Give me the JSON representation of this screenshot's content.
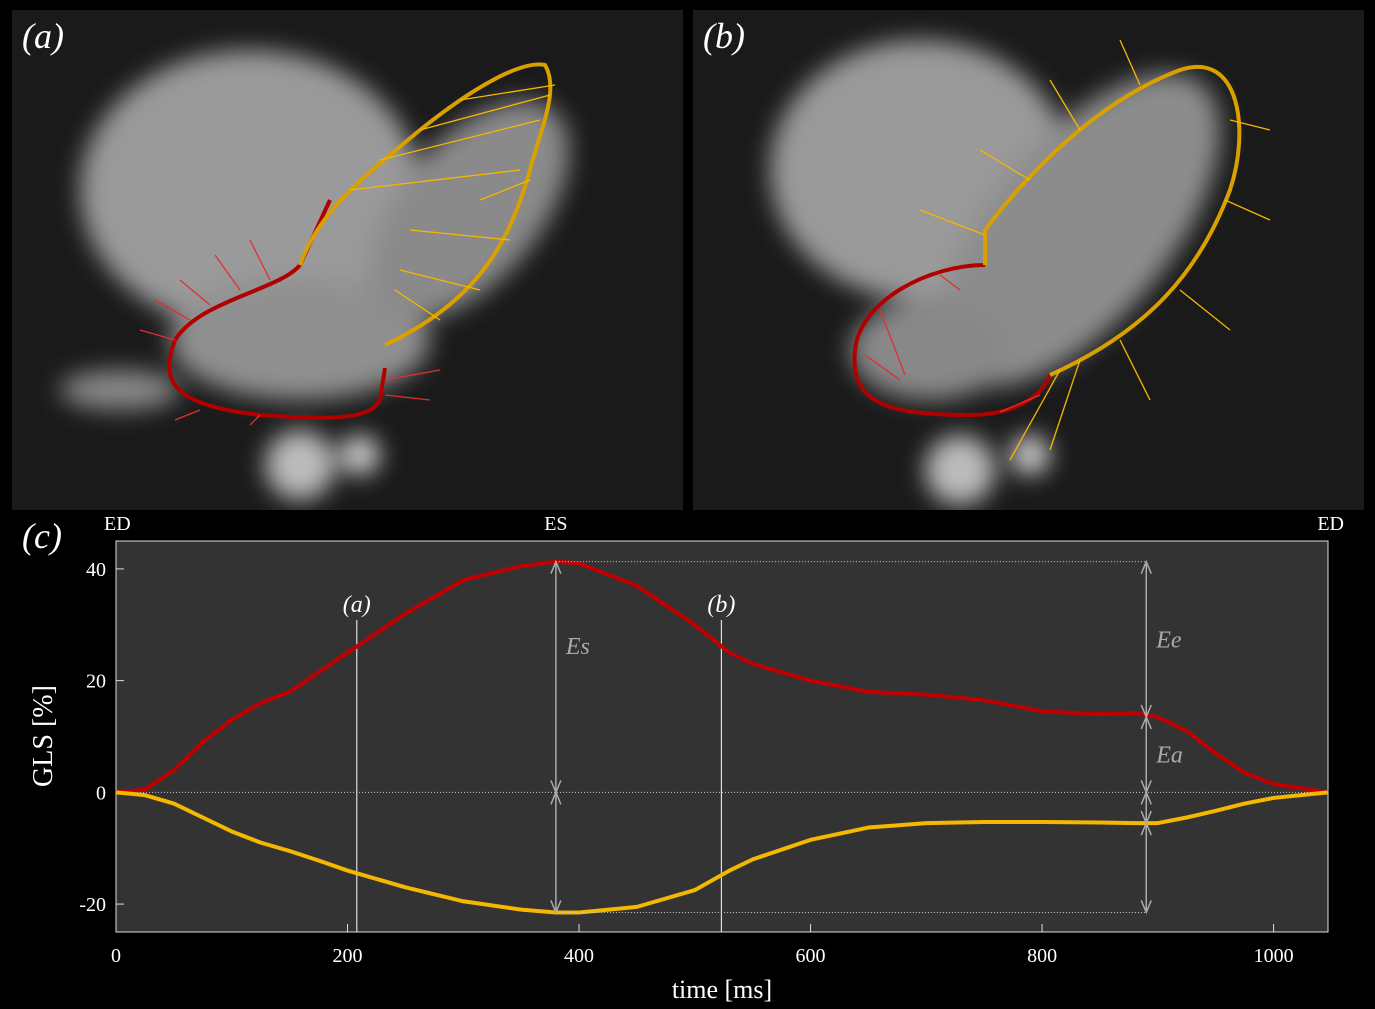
{
  "panels": [
    "(a)",
    "(b)"
  ],
  "chart_data": {
    "type": "line",
    "panel_label": "(c)",
    "x_label": "time [ms]",
    "y_label": "GLS [%]",
    "x": [
      0,
      25,
      50,
      75,
      100,
      125,
      150,
      175,
      200,
      250,
      300,
      350,
      380,
      400,
      450,
      500,
      530,
      550,
      600,
      650,
      700,
      750,
      800,
      850,
      880,
      900,
      925,
      950,
      975,
      1000,
      1047
    ],
    "series": [
      {
        "color": "#c00000",
        "values": [
          0,
          0.5,
          4,
          9,
          13,
          16,
          18,
          21.5,
          25,
          32,
          38,
          40.5,
          41.3,
          41,
          37,
          30,
          25,
          23,
          20,
          18,
          17.5,
          16.5,
          14.5,
          14,
          14.2,
          13.5,
          11,
          7,
          3.5,
          1.5,
          0
        ]
      },
      {
        "color": "#f5b800",
        "values": [
          0,
          -0.5,
          -2,
          -4.5,
          -7,
          -9,
          -10.5,
          -12.2,
          -14,
          -17,
          -19.5,
          -21,
          -21.5,
          -21.5,
          -20.5,
          -17.5,
          -14,
          -12,
          -8.5,
          -6.3,
          -5.5,
          -5.3,
          -5.3,
          -5.4,
          -5.5,
          -5.5,
          -4.5,
          -3.3,
          -2,
          -1,
          0
        ]
      }
    ],
    "xlim": [
      0,
      1047
    ],
    "ylim": [
      -25,
      45
    ],
    "xticks": [
      0,
      200,
      400,
      600,
      800,
      1000
    ],
    "yticks": [
      -20,
      0,
      20,
      40
    ],
    "top_markers": [
      {
        "label": "ED",
        "x": 0
      },
      {
        "label": "ES",
        "x": 380
      },
      {
        "label": "ED",
        "x": 1047
      }
    ],
    "time_lines": [
      {
        "label": "(a)",
        "x": 208
      },
      {
        "label": "(b)",
        "x": 523
      }
    ],
    "annotations": [
      {
        "text": "Es",
        "x": 380
      },
      {
        "text": "Ee",
        "x": 890
      },
      {
        "text": "Ea",
        "x": 890
      }
    ]
  }
}
